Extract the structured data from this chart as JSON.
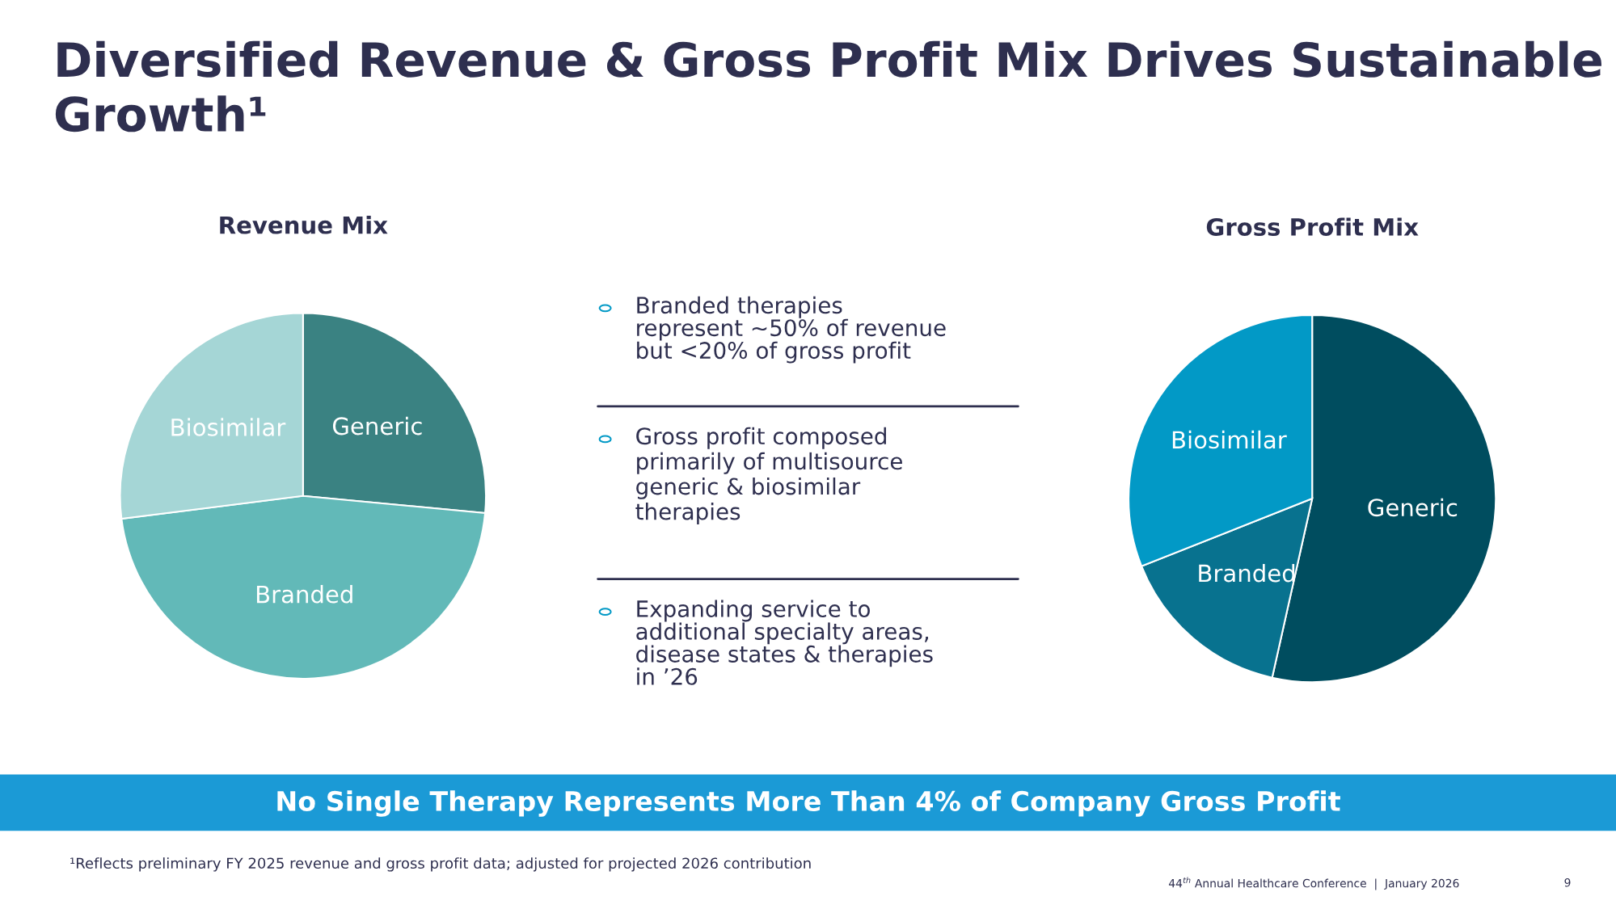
{
  "chart_data": [
    {
      "type": "other",
      "title": "Diversified Revenue & Gross Profit Mix Drives Sustainable Growth¹",
      "annotations": [
        "Branded therapies\nrepresent ~50% of revenue\nbut <20% of gross profit",
        "Gross profit composed\nprimarily of multisource\ngeneric & biosimilar\ntherapies",
        "Expanding service to\nadditional specialty areas,\ndisease states & therapies\nin ’26",
        "No Single Therapy Represents More Than 4% of Company Gross Profit",
        "¹Reflects preliminary FY 2025 revenue and gross profit data; adjusted for projected 2026 contribution",
        "44$^{th}$ Annual Healthcare Conference  |  January 2026",
        "9"
      ]
    },
    {
      "type": "pie",
      "title": "Revenue Mix",
      "categories": [
        "Generic",
        "Branded",
        "Biosimilar"
      ],
      "values": [
        26.5,
        46.5,
        27
      ],
      "colors": [
        "#3a8282",
        "#62b9b8",
        "#a5d6d6"
      ]
    },
    {
      "type": "pie",
      "title": "Gross Profit Mix",
      "categories": [
        "Generic",
        "Branded",
        "Biosimilar"
      ],
      "values": [
        53.5,
        15.5,
        31
      ],
      "colors": [
        "#004d5f",
        "#08728f",
        "#0299c6"
      ]
    }
  ]
}
